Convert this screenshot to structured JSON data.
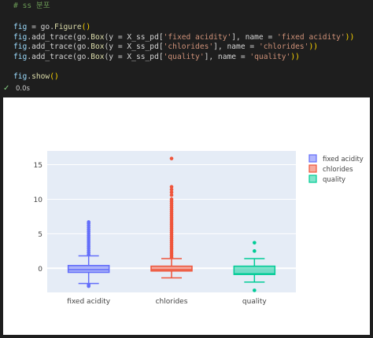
{
  "cell": {
    "comment_mark": "#",
    "comment_text": "ss 분포",
    "lines": {
      "l1": {
        "a": "fig",
        "b": " = go.",
        "c": "Figure",
        "d": "()"
      },
      "l2": {
        "a": "fig",
        "b": ".add_trace(go.",
        "c": "Box",
        "d": "(y = X_ss_pd[",
        "e": "'fixed acidity'",
        "f": "], name = ",
        "g": "'fixed acidity'",
        "h": "))"
      },
      "l3": {
        "a": "fig",
        "b": ".add_trace(go.",
        "c": "Box",
        "d": "(y = X_ss_pd[",
        "e": "'chlorides'",
        "f": "], name = ",
        "g": "'chlorides'",
        "h": "))"
      },
      "l4": {
        "a": "fig",
        "b": ".add_trace(go.",
        "c": "Box",
        "d": "(y = X_ss_pd[",
        "e": "'quality'",
        "f": "], name = ",
        "g": "'quality'",
        "h": "))"
      },
      "l5": {
        "a": "fig",
        "b": ".",
        "c": "show",
        "d": "()"
      }
    },
    "status_check": "✓",
    "elapsed": "0.0s"
  },
  "colors": {
    "fixed acidity": "#636efa",
    "chlorides": "#ef553b",
    "quality": "#00cc96",
    "plot_bg": "#e5ecf6"
  },
  "chart_data": {
    "type": "box",
    "categories": [
      "fixed acidity",
      "chlorides",
      "quality"
    ],
    "ylim": [
      -3.5,
      17
    ],
    "yticks": [
      0,
      5,
      10,
      15
    ],
    "ytick_labels": [
      "0",
      "5",
      "10",
      "15"
    ],
    "grid": true,
    "legend_placement": "top-right",
    "series": [
      {
        "name": "fixed acidity",
        "q1": -0.6,
        "median": -0.2,
        "q3": 0.4,
        "lower_fence": -2.2,
        "upper_fence": 1.8,
        "outliers": [
          -2.6,
          -2.4,
          2.0,
          2.3,
          2.6,
          2.9,
          3.2,
          3.5,
          3.8,
          4.1,
          4.4,
          4.7,
          5.0,
          5.3,
          5.6,
          5.9,
          6.2,
          6.5,
          6.7
        ]
      },
      {
        "name": "chlorides",
        "q1": -0.4,
        "median": -0.2,
        "q3": 0.3,
        "lower_fence": -1.4,
        "upper_fence": 1.4,
        "outliers": [
          1.6,
          1.9,
          2.2,
          2.5,
          2.8,
          3.1,
          3.4,
          3.7,
          4.0,
          4.3,
          4.6,
          4.9,
          5.2,
          5.5,
          5.8,
          6.1,
          6.4,
          6.7,
          7.0,
          7.3,
          7.6,
          7.9,
          8.2,
          8.5,
          8.8,
          9.1,
          9.4,
          9.7,
          10.0,
          10.6,
          11.0,
          11.4,
          11.8,
          15.9
        ]
      },
      {
        "name": "quality",
        "q1": -0.9,
        "median": -0.8,
        "q3": 0.3,
        "lower_fence": -2.0,
        "upper_fence": 1.4,
        "outliers": [
          -3.2,
          2.5,
          3.7
        ]
      }
    ]
  }
}
